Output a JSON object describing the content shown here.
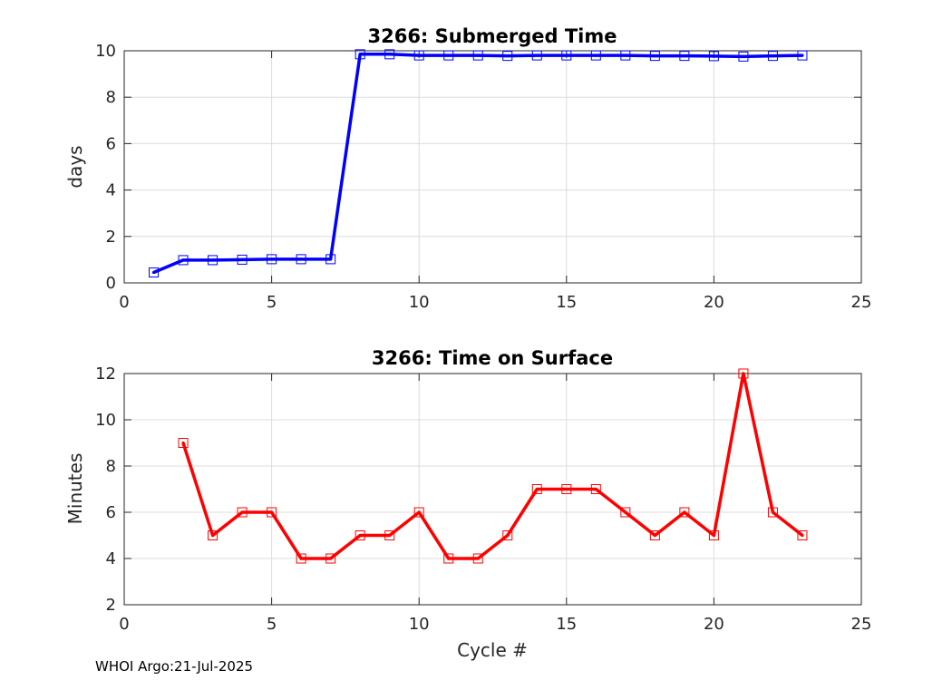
{
  "footer": "WHOI Argo:21-Jul-2025",
  "colors": {
    "top_series": "#0000ff",
    "bottom_series": "#ff0000",
    "grid": "#dcdcdc",
    "axes": "#262626"
  },
  "chart_data": [
    {
      "type": "line",
      "title": "3266: Submerged Time",
      "xlabel": "",
      "ylabel": "days",
      "xlim": [
        0,
        25
      ],
      "ylim": [
        0,
        10
      ],
      "xticks": [
        0,
        5,
        10,
        15,
        20,
        25
      ],
      "yticks": [
        0,
        2,
        4,
        6,
        8,
        10
      ],
      "grid": true,
      "marker": "square",
      "series": [
        {
          "color": "#0000ff",
          "x": [
            1,
            2,
            3,
            4,
            5,
            6,
            7,
            8,
            9,
            10,
            11,
            12,
            13,
            14,
            15,
            16,
            17,
            18,
            19,
            20,
            21,
            22,
            23
          ],
          "y": [
            0.45,
            0.98,
            0.98,
            1.0,
            1.02,
            1.02,
            1.02,
            9.85,
            9.85,
            9.8,
            9.8,
            9.8,
            9.78,
            9.8,
            9.8,
            9.8,
            9.8,
            9.78,
            9.78,
            9.77,
            9.75,
            9.78,
            9.8
          ]
        }
      ]
    },
    {
      "type": "line",
      "title": "3266: Time on Surface",
      "xlabel": "Cycle #",
      "ylabel": "Minutes",
      "xlim": [
        0,
        25
      ],
      "ylim": [
        2,
        12
      ],
      "xticks": [
        0,
        5,
        10,
        15,
        20,
        25
      ],
      "yticks": [
        2,
        4,
        6,
        8,
        10,
        12
      ],
      "grid": true,
      "marker": "square",
      "series": [
        {
          "color": "#ff0000",
          "x": [
            2,
            3,
            4,
            5,
            6,
            7,
            8,
            9,
            10,
            11,
            12,
            13,
            14,
            15,
            16,
            17,
            18,
            19,
            20,
            21,
            22,
            23
          ],
          "y": [
            9,
            5,
            6,
            6,
            4,
            4,
            5,
            5,
            6,
            4,
            4,
            5,
            7,
            7,
            7,
            6,
            5,
            6,
            5,
            12,
            6,
            5
          ]
        }
      ]
    }
  ]
}
